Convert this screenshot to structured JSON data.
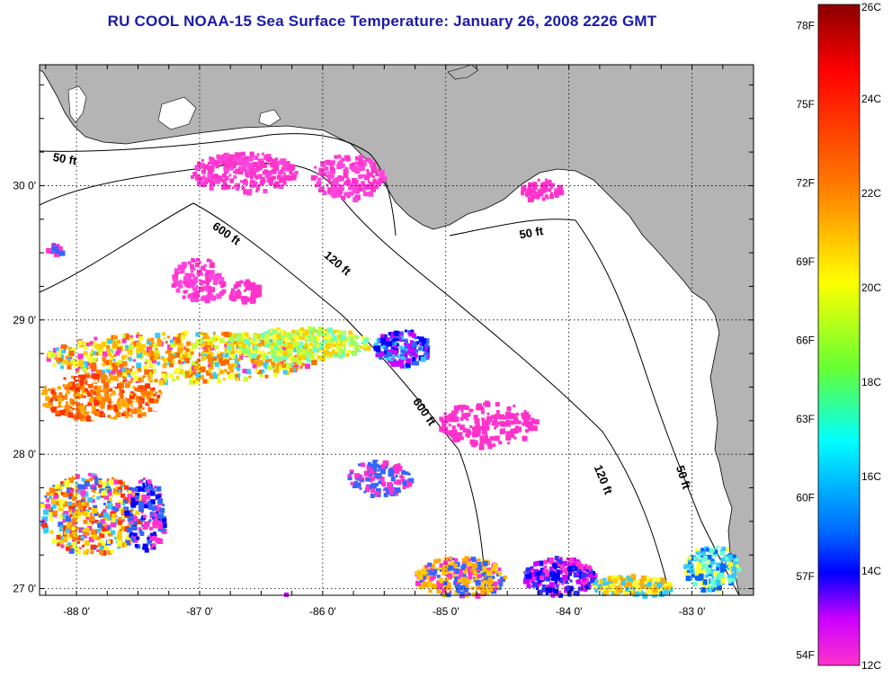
{
  "title": "RU COOL  NOAA-15  Sea Surface Temperature:  January 26, 2008 2226 GMT",
  "map": {
    "lon_range": [
      -88.3,
      -82.5
    ],
    "lat_range": [
      26.95,
      30.9
    ],
    "lat_ticks": [
      {
        "value": 30,
        "label": "30 0'"
      },
      {
        "value": 29,
        "label": "29 0'"
      },
      {
        "value": 28,
        "label": "28 0'"
      },
      {
        "value": 27,
        "label": "27 0'"
      }
    ],
    "lon_ticks": [
      {
        "value": -88,
        "label": "-88 0'"
      },
      {
        "value": -87,
        "label": "-87 0'"
      },
      {
        "value": -86,
        "label": "-86 0'"
      },
      {
        "value": -85,
        "label": "-85 0'"
      },
      {
        "value": -84,
        "label": "-84 0'"
      },
      {
        "value": -83,
        "label": "-83 0'"
      }
    ],
    "depth_labels": [
      {
        "text": "50 ft",
        "lon": -88.1,
        "lat": 30.17,
        "rotate": 10
      },
      {
        "text": "600 ft",
        "lon": -86.8,
        "lat": 29.62,
        "rotate": 35
      },
      {
        "text": "120 ft",
        "lon": -85.9,
        "lat": 29.4,
        "rotate": 40
      },
      {
        "text": "50 ft",
        "lon": -84.3,
        "lat": 29.62,
        "rotate": -10
      },
      {
        "text": "600 ft",
        "lon": -85.2,
        "lat": 28.3,
        "rotate": 55
      },
      {
        "text": "120 ft",
        "lon": -83.75,
        "lat": 27.8,
        "rotate": 68
      },
      {
        "text": "50 ft",
        "lon": -83.1,
        "lat": 27.82,
        "rotate": 72
      }
    ],
    "colors": {
      "land": "#b4b4b4",
      "water": "#ffffff",
      "coast": "#000000"
    }
  },
  "colorbar": {
    "celsius": [
      {
        "value": 26,
        "label": "26C"
      },
      {
        "value": 24,
        "label": "24C"
      },
      {
        "value": 22,
        "label": "22C"
      },
      {
        "value": 20,
        "label": "20C"
      },
      {
        "value": 18,
        "label": "18C"
      },
      {
        "value": 16,
        "label": "16C"
      },
      {
        "value": 14,
        "label": "14C"
      },
      {
        "value": 12,
        "label": "12C"
      }
    ],
    "fahrenheit": [
      {
        "value": 78,
        "label": "78F"
      },
      {
        "value": 75,
        "label": "75F"
      },
      {
        "value": 72,
        "label": "72F"
      },
      {
        "value": 69,
        "label": "69F"
      },
      {
        "value": 66,
        "label": "66F"
      },
      {
        "value": 63,
        "label": "63F"
      },
      {
        "value": 60,
        "label": "60F"
      },
      {
        "value": 57,
        "label": "57F"
      },
      {
        "value": 54,
        "label": "54F"
      }
    ],
    "range_c": [
      12,
      26
    ]
  }
}
